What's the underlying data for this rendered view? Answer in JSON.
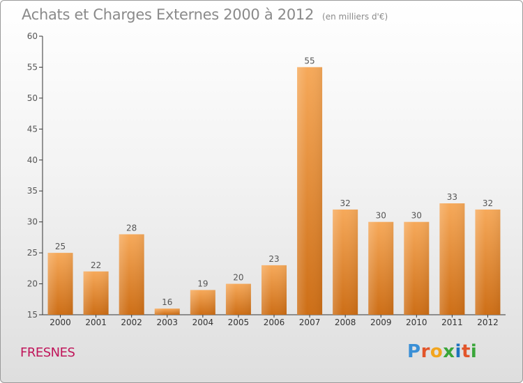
{
  "header": {
    "title": "Achats et Charges Externes 2000 à 2012",
    "unit": "(en milliers d'€)"
  },
  "footer": {
    "commune": "FRESNES",
    "logo": "Proxiti"
  },
  "colors": {
    "bar_light": "#f6a95a",
    "bar_dark": "#cd6e16",
    "text": "#555555",
    "title": "#8a8a8a",
    "commune": "#c0155a"
  },
  "chart_data": {
    "type": "bar",
    "title": "Achats et Charges Externes 2000 à 2012",
    "subtitle": "(en milliers d'€)",
    "categories": [
      "2000",
      "2001",
      "2002",
      "2003",
      "2004",
      "2005",
      "2006",
      "2007",
      "2008",
      "2009",
      "2010",
      "2011",
      "2012"
    ],
    "values": [
      25,
      22,
      28,
      16,
      19,
      20,
      23,
      55,
      32,
      30,
      30,
      33,
      32
    ],
    "ylim": [
      15,
      60
    ],
    "yticks": [
      15,
      20,
      25,
      30,
      35,
      40,
      45,
      50,
      55,
      60
    ],
    "grid": false,
    "data_labels": true
  }
}
